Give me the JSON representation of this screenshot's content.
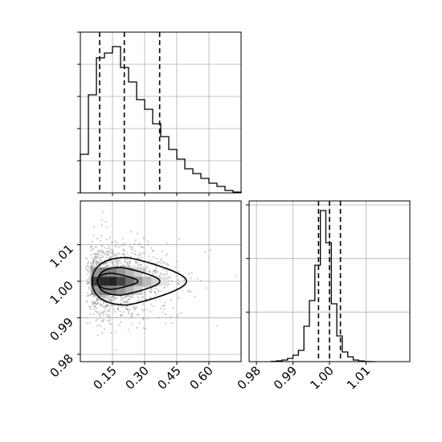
{
  "chart_data": {
    "type": "corner",
    "parameters": [
      {
        "range": [
          0.0,
          0.75
        ]
      },
      {
        "range": [
          0.978,
          1.022
        ]
      }
    ],
    "marginals": [
      {
        "parameter": 0,
        "type": "histogram",
        "bin_edges": [
          0.0,
          0.0375,
          0.075,
          0.1125,
          0.15,
          0.1875,
          0.225,
          0.2625,
          0.3,
          0.3375,
          0.375,
          0.4125,
          0.45,
          0.4875,
          0.525,
          0.5625,
          0.6,
          0.6375,
          0.675,
          0.7125,
          0.75
        ],
        "counts": [
          0.24,
          0.61,
          0.84,
          0.87,
          0.91,
          0.78,
          0.69,
          0.58,
          0.52,
          0.43,
          0.35,
          0.27,
          0.21,
          0.15,
          0.12,
          0.09,
          0.06,
          0.04,
          0.015,
          0.005
        ],
        "quantiles": [
          0.09,
          0.205,
          0.37
        ],
        "ylim": [
          0,
          1.0
        ]
      },
      {
        "parameter": 1,
        "type": "histogram",
        "bin_edges": [
          0.984,
          0.9855,
          0.987,
          0.9885,
          0.99,
          0.9915,
          0.993,
          0.9945,
          0.996,
          0.9975,
          0.999,
          1.0005,
          1.002,
          1.0035,
          1.005,
          1.0065,
          1.008,
          1.0095,
          1.011,
          1.0125
        ],
        "counts": [
          0.002,
          0.005,
          0.01,
          0.02,
          0.04,
          0.07,
          0.22,
          0.38,
          0.6,
          0.94,
          0.74,
          0.36,
          0.16,
          0.06,
          0.03,
          0.01,
          0.004,
          0.001,
          0.0
        ],
        "quantiles": [
          0.997,
          1.0,
          1.003
        ],
        "ylim": [
          0,
          1.0
        ]
      }
    ],
    "joint": {
      "x_param": 0,
      "y_param": 1,
      "contour_levels": [
        {
          "center": [
            0.22,
            1.0
          ],
          "half_width": [
            0.22,
            0.0065
          ]
        },
        {
          "center": [
            0.19,
            1.0
          ],
          "half_width": [
            0.145,
            0.0038
          ]
        },
        {
          "center": [
            0.15,
            1.0
          ],
          "half_width": [
            0.095,
            0.0022
          ]
        }
      ],
      "density_cells": [
        {
          "x": 0.07,
          "y": 1.0,
          "v": 0.82
        },
        {
          "x": 0.11,
          "y": 1.0,
          "v": 0.93
        },
        {
          "x": 0.15,
          "y": 1.0,
          "v": 0.96
        },
        {
          "x": 0.19,
          "y": 1.0,
          "v": 0.82
        },
        {
          "x": 0.23,
          "y": 1.0,
          "v": 0.62
        },
        {
          "x": 0.27,
          "y": 1.0,
          "v": 0.45
        },
        {
          "x": 0.31,
          "y": 1.0,
          "v": 0.3
        },
        {
          "x": 0.35,
          "y": 1.0,
          "v": 0.2
        },
        {
          "x": 0.39,
          "y": 1.0,
          "v": 0.12
        },
        {
          "x": 0.07,
          "y": 1.0025,
          "v": 0.45
        },
        {
          "x": 0.11,
          "y": 1.0025,
          "v": 0.55
        },
        {
          "x": 0.15,
          "y": 1.0025,
          "v": 0.55
        },
        {
          "x": 0.19,
          "y": 1.0025,
          "v": 0.45
        },
        {
          "x": 0.23,
          "y": 1.0025,
          "v": 0.32
        },
        {
          "x": 0.27,
          "y": 1.0025,
          "v": 0.2
        },
        {
          "x": 0.07,
          "y": 0.9975,
          "v": 0.45
        },
        {
          "x": 0.11,
          "y": 0.9975,
          "v": 0.55
        },
        {
          "x": 0.15,
          "y": 0.9975,
          "v": 0.55
        },
        {
          "x": 0.19,
          "y": 0.9975,
          "v": 0.45
        },
        {
          "x": 0.23,
          "y": 0.9975,
          "v": 0.32
        },
        {
          "x": 0.27,
          "y": 0.9975,
          "v": 0.2
        }
      ],
      "scatter_spread": [
        0.17,
        0.005
      ]
    },
    "axes": {
      "x_param0_ticks": [
        0.15,
        0.3,
        0.45,
        0.6
      ],
      "x_param0_ticklabels": [
        "0.15",
        "0.30",
        "0.45",
        "0.60"
      ],
      "y_param1_ticks": [
        0.98,
        0.99,
        1.0,
        1.01
      ],
      "y_param1_ticklabels": [
        "0.98",
        "0.99",
        "1.00",
        "1.01"
      ],
      "x_param1_ticks": [
        0.98,
        0.99,
        1.0,
        1.01
      ],
      "x_param1_ticklabels": [
        "0.98",
        "0.99",
        "1.00",
        "1.01"
      ]
    },
    "grid": true,
    "title": "",
    "xlabel": "",
    "ylabel": ""
  }
}
